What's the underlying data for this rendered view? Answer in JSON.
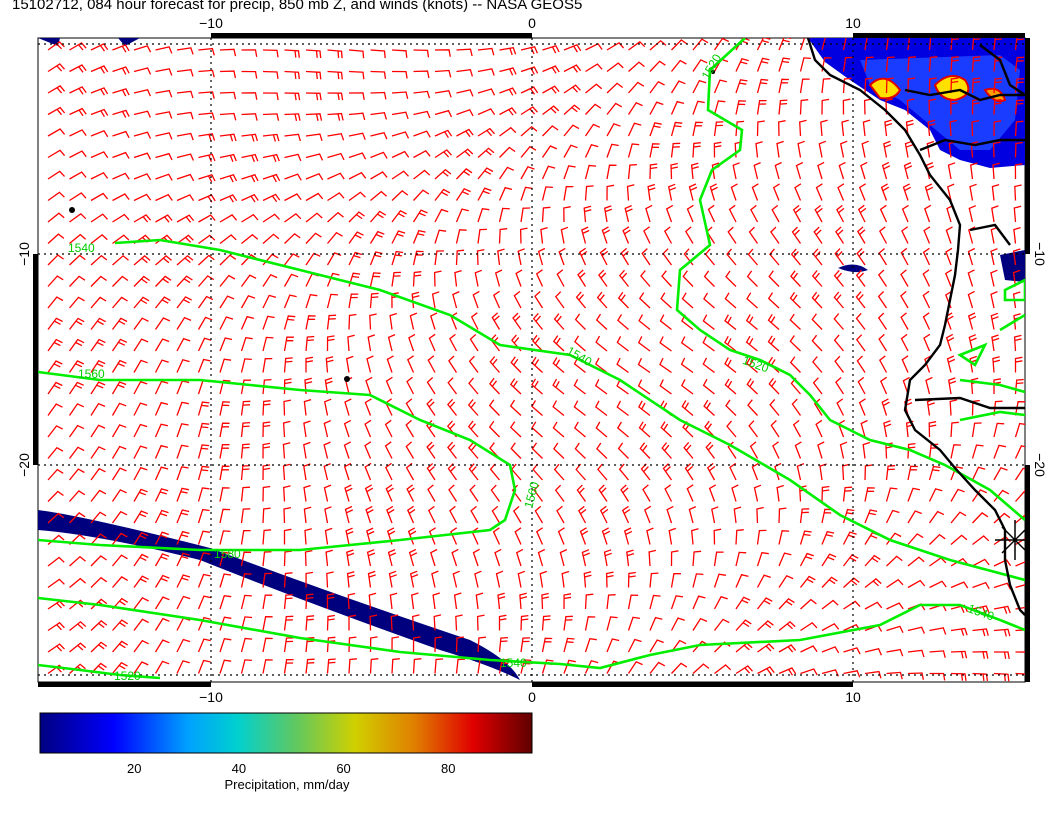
{
  "title": "15102712, 084 hour forecast for precip, 850 mb Z, and winds (knots) -- NASA GEOS5",
  "axes": {
    "top": [
      "−10",
      "0",
      "10"
    ],
    "bottom": [
      "−10",
      "0",
      "10"
    ],
    "left": [
      "−10",
      "−20"
    ],
    "right": [
      "−10",
      "−20"
    ]
  },
  "contour_labels": [
    "1520",
    "1540",
    "1560",
    "1540",
    "1520",
    "1560",
    "1580",
    "1540",
    "1520",
    "1540"
  ],
  "colorbar": {
    "label": "Precipitation, mm/day",
    "ticks": [
      "20",
      "40",
      "60",
      "80"
    ],
    "tick_values": [
      20,
      40,
      60,
      80
    ],
    "range": [
      2,
      96
    ],
    "colors": [
      "#000080",
      "#0000ff",
      "#00a0ff",
      "#00d0d0",
      "#60c860",
      "#d0d000",
      "#e08000",
      "#e00000",
      "#600000"
    ]
  },
  "colors": {
    "wind_barbs": "#ff0000",
    "contours": "#00ff00",
    "coastline": "#000000",
    "precip_low": "#00007f"
  }
}
